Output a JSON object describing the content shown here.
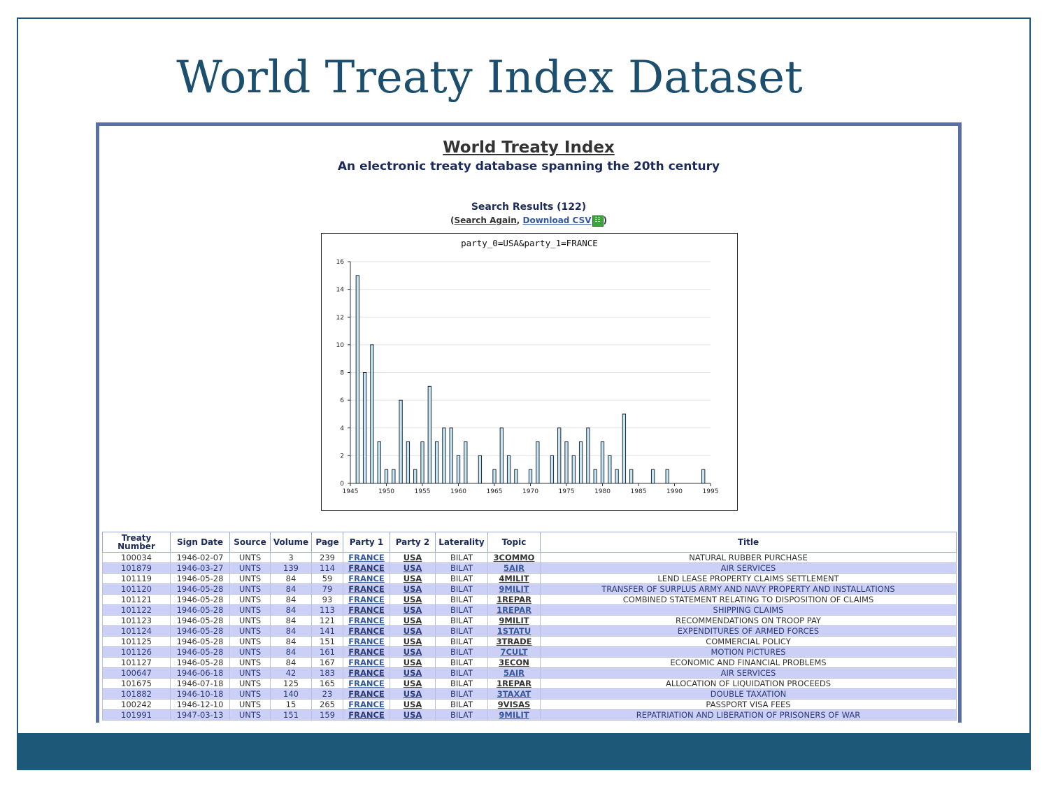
{
  "slide": {
    "title": "World Treaty Index Dataset",
    "colors": {
      "accent": "#1e5878",
      "title": "#1c4f6e",
      "frame": "#5a6fa8",
      "row_alt": "#ccd0f7"
    }
  },
  "site": {
    "title": "World Treaty Index",
    "subtitle": "An electronic treaty database spanning the 20th century",
    "results_text": "Search Results (122)",
    "paren_open": "(",
    "search_again": "Search Again",
    "comma": ", ",
    "download_csv": "Download CSV",
    "csv_icon": "spreadsheet-icon",
    "paren_close": ")"
  },
  "chart_data": {
    "type": "bar",
    "title": "party_0=USA&party_1=FRANCE",
    "xlabel": "",
    "ylabel": "",
    "xlim": [
      1945,
      1995
    ],
    "ylim": [
      0,
      16
    ],
    "yticks": [
      0,
      2,
      4,
      6,
      8,
      10,
      12,
      14,
      16
    ],
    "xticks": [
      1945,
      1950,
      1955,
      1960,
      1965,
      1970,
      1975,
      1980,
      1985,
      1990,
      1995
    ],
    "grid": true,
    "x": [
      1946,
      1947,
      1948,
      1949,
      1950,
      1951,
      1952,
      1953,
      1954,
      1955,
      1956,
      1957,
      1958,
      1959,
      1960,
      1961,
      1963,
      1965,
      1966,
      1967,
      1968,
      1970,
      1971,
      1973,
      1974,
      1975,
      1976,
      1977,
      1978,
      1979,
      1980,
      1981,
      1982,
      1983,
      1984,
      1987,
      1989,
      1994
    ],
    "values": [
      15,
      8,
      10,
      3,
      1,
      1,
      6,
      3,
      1,
      3,
      7,
      3,
      4,
      4,
      2,
      3,
      2,
      1,
      4,
      2,
      1,
      1,
      3,
      2,
      4,
      3,
      2,
      3,
      4,
      1,
      3,
      2,
      1,
      5,
      1,
      1,
      1,
      1
    ]
  },
  "table": {
    "headers": [
      "Treaty Number",
      "Sign Date",
      "Source",
      "Volume",
      "Page",
      "Party 1",
      "Party 2",
      "Laterality",
      "Topic",
      "Title"
    ],
    "rows": [
      [
        "100034",
        "1946-02-07",
        "UNTS",
        "3",
        "239",
        "FRANCE",
        "USA",
        "BILAT",
        "3COMMO",
        "NATURAL RUBBER PURCHASE"
      ],
      [
        "101879",
        "1946-03-27",
        "UNTS",
        "139",
        "114",
        "FRANCE",
        "USA",
        "BILAT",
        "5AIR",
        "AIR SERVICES"
      ],
      [
        "101119",
        "1946-05-28",
        "UNTS",
        "84",
        "59",
        "FRANCE",
        "USA",
        "BILAT",
        "4MILIT",
        "LEND LEASE PROPERTY CLAIMS SETTLEMENT"
      ],
      [
        "101120",
        "1946-05-28",
        "UNTS",
        "84",
        "79",
        "FRANCE",
        "USA",
        "BILAT",
        "9MILIT",
        "TRANSFER OF SURPLUS ARMY AND NAVY PROPERTY AND INSTALLATIONS"
      ],
      [
        "101121",
        "1946-05-28",
        "UNTS",
        "84",
        "93",
        "FRANCE",
        "USA",
        "BILAT",
        "1REPAR",
        "COMBINED STATEMENT RELATING TO DISPOSITION OF CLAIMS"
      ],
      [
        "101122",
        "1946-05-28",
        "UNTS",
        "84",
        "113",
        "FRANCE",
        "USA",
        "BILAT",
        "1REPAR",
        "SHIPPING CLAIMS"
      ],
      [
        "101123",
        "1946-05-28",
        "UNTS",
        "84",
        "121",
        "FRANCE",
        "USA",
        "BILAT",
        "9MILIT",
        "RECOMMENDATIONS ON TROOP PAY"
      ],
      [
        "101124",
        "1946-05-28",
        "UNTS",
        "84",
        "141",
        "FRANCE",
        "USA",
        "BILAT",
        "1STATU",
        "EXPENDITURES OF ARMED FORCES"
      ],
      [
        "101125",
        "1946-05-28",
        "UNTS",
        "84",
        "151",
        "FRANCE",
        "USA",
        "BILAT",
        "3TRADE",
        "COMMERCIAL POLICY"
      ],
      [
        "101126",
        "1946-05-28",
        "UNTS",
        "84",
        "161",
        "FRANCE",
        "USA",
        "BILAT",
        "7CULT",
        "MOTION PICTURES"
      ],
      [
        "101127",
        "1946-05-28",
        "UNTS",
        "84",
        "167",
        "FRANCE",
        "USA",
        "BILAT",
        "3ECON",
        "ECONOMIC AND FINANCIAL PROBLEMS"
      ],
      [
        "100647",
        "1946-06-18",
        "UNTS",
        "42",
        "183",
        "FRANCE",
        "USA",
        "BILAT",
        "5AIR",
        "AIR SERVICES"
      ],
      [
        "101675",
        "1946-07-18",
        "UNTS",
        "125",
        "165",
        "FRANCE",
        "USA",
        "BILAT",
        "1REPAR",
        "ALLOCATION OF LIQUIDATION PROCEEDS"
      ],
      [
        "101882",
        "1946-10-18",
        "UNTS",
        "140",
        "23",
        "FRANCE",
        "USA",
        "BILAT",
        "3TAXAT",
        "DOUBLE TAXATION"
      ],
      [
        "100242",
        "1946-12-10",
        "UNTS",
        "15",
        "265",
        "FRANCE",
        "USA",
        "BILAT",
        "9VISAS",
        "PASSPORT VISA FEES"
      ],
      [
        "101991",
        "1947-03-13",
        "UNTS",
        "151",
        "159",
        "FRANCE",
        "USA",
        "BILAT",
        "9MILIT",
        "REPATRIATION AND LIBERATION OF PRISONERS OF WAR"
      ]
    ]
  }
}
